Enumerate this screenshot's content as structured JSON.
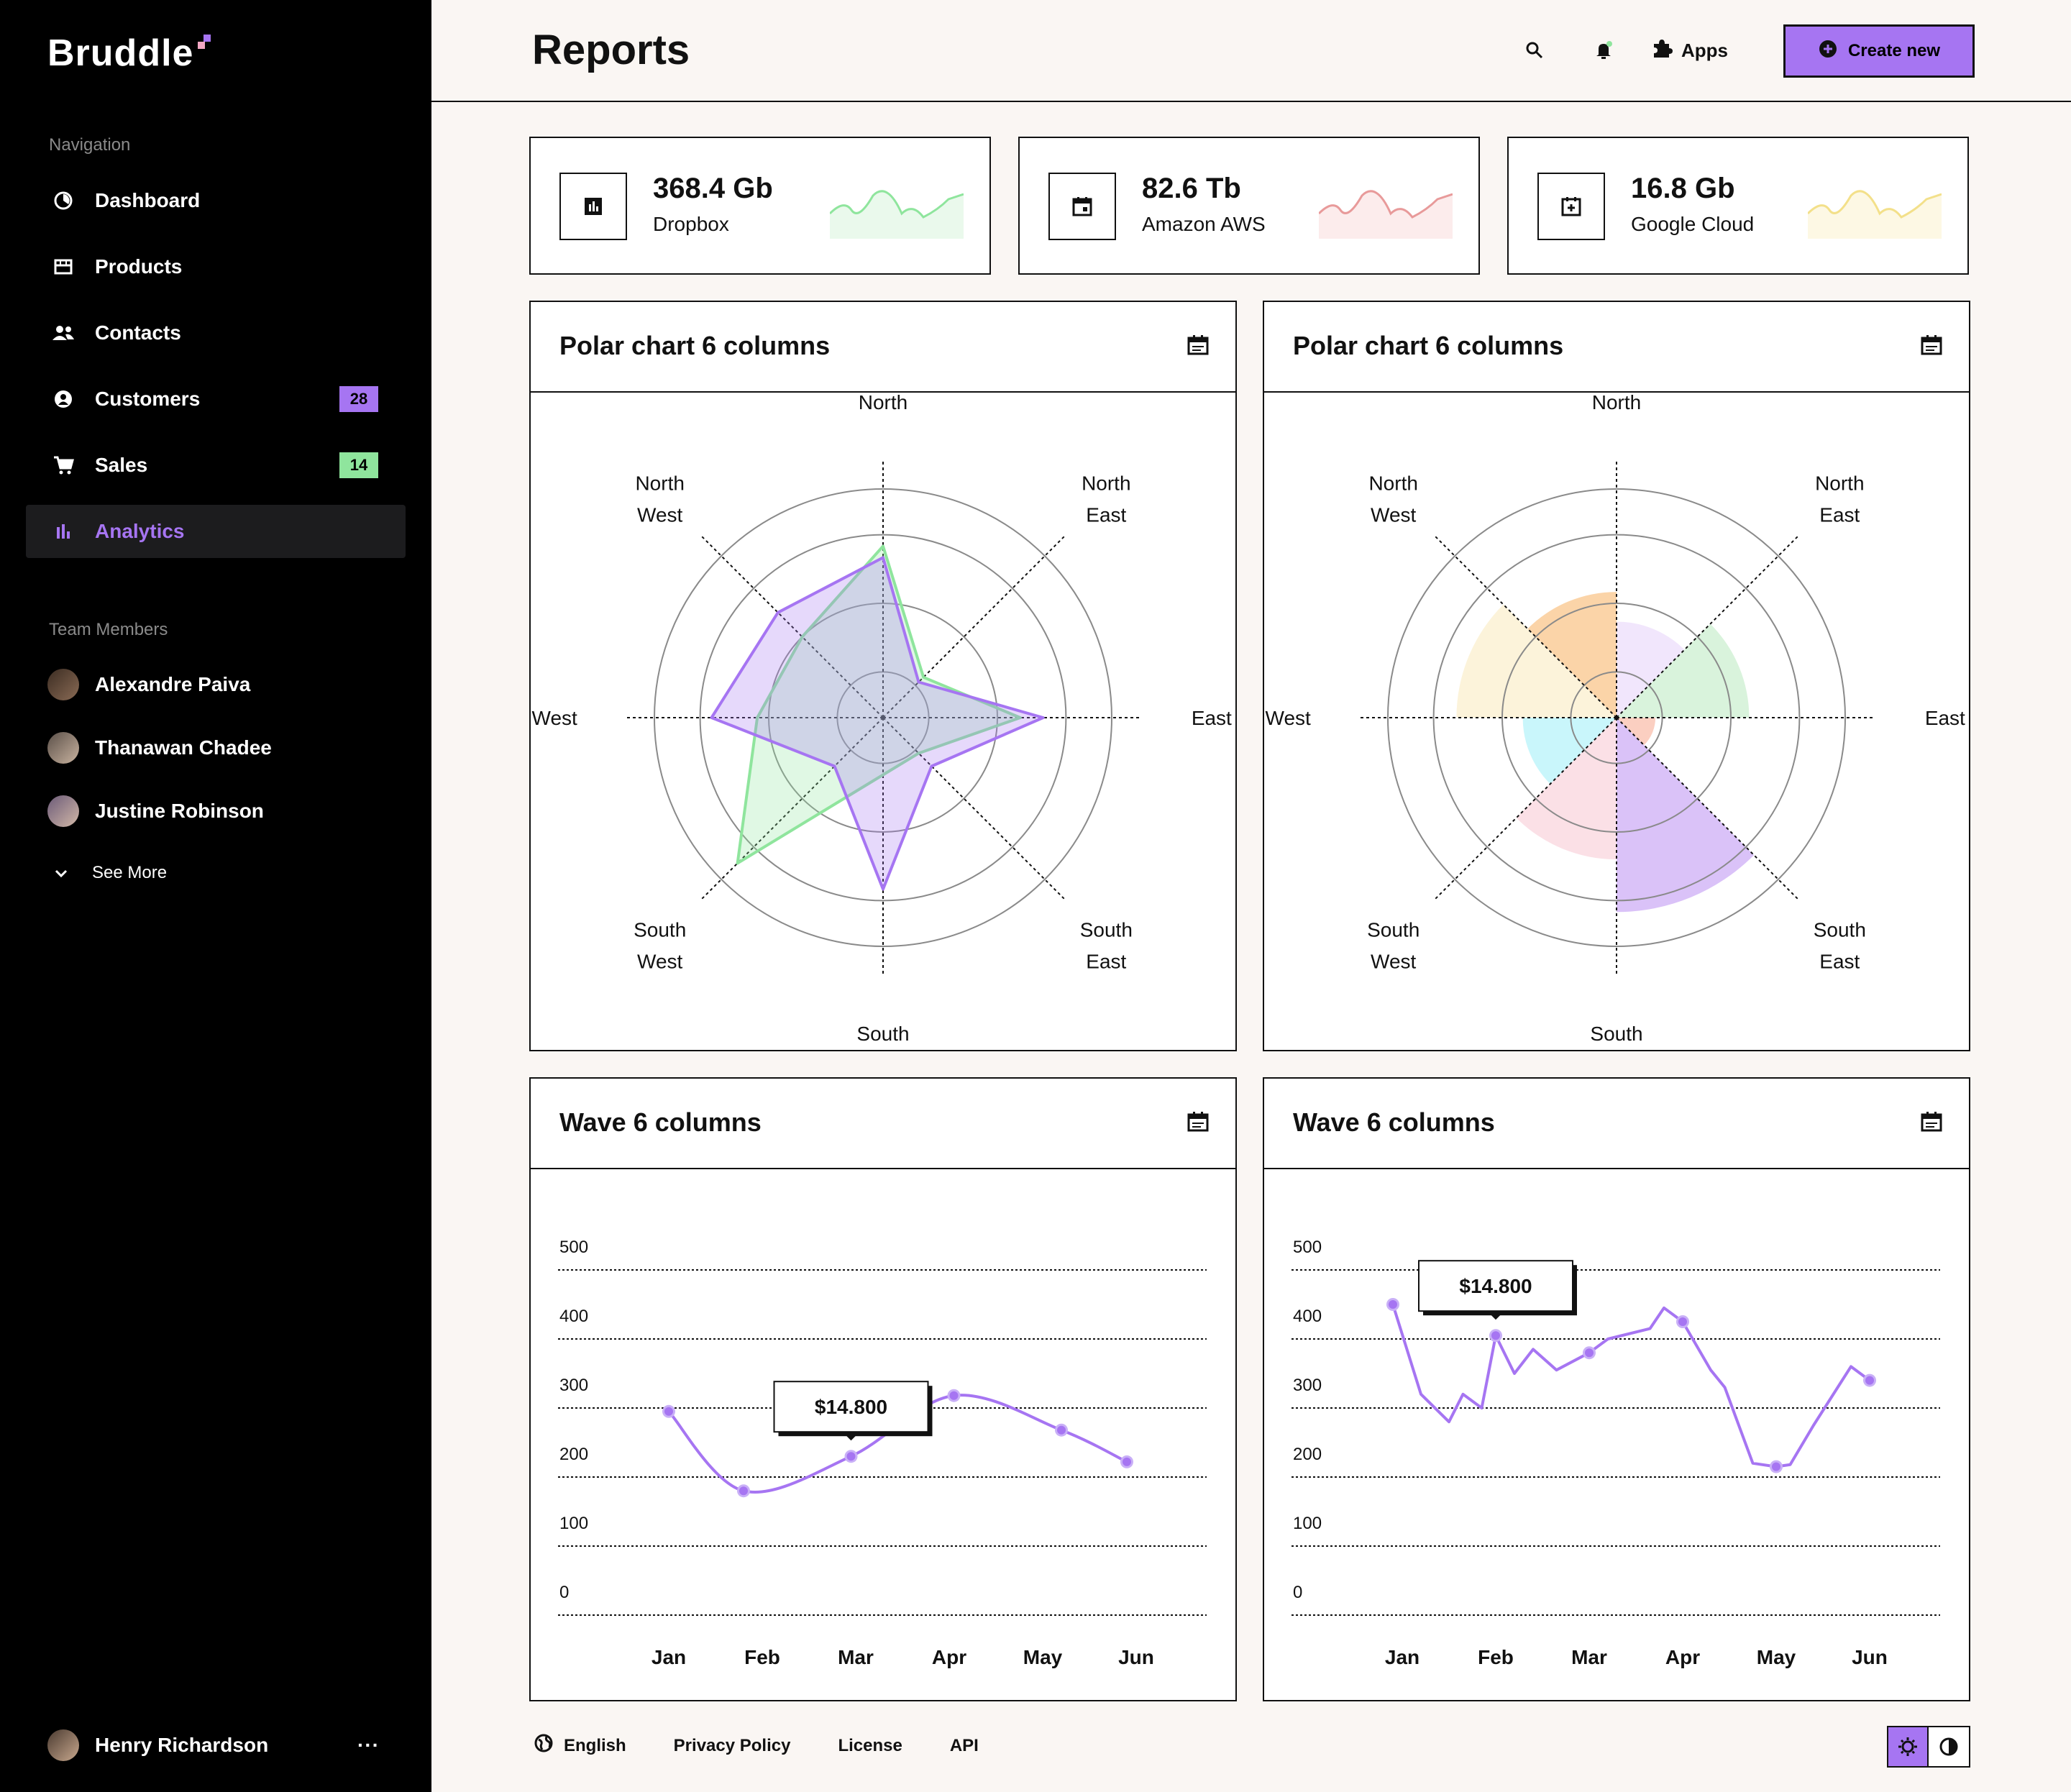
{
  "app": {
    "name": "Bruddle"
  },
  "sidebar": {
    "nav_label": "Navigation",
    "items": [
      {
        "label": "Dashboard",
        "icon": "dashboard-icon"
      },
      {
        "label": "Products",
        "icon": "products-icon"
      },
      {
        "label": "Contacts",
        "icon": "contacts-icon"
      },
      {
        "label": "Customers",
        "icon": "customers-icon",
        "badge": "28",
        "badge_color": "#a675f2"
      },
      {
        "label": "Sales",
        "icon": "cart-icon",
        "badge": "14",
        "badge_color": "#8fe59d"
      },
      {
        "label": "Analytics",
        "icon": "analytics-icon",
        "active": true
      }
    ],
    "team_label": "Team Members",
    "members": [
      {
        "name": "Alexandre Paiva"
      },
      {
        "name": "Thanawan Chadee"
      },
      {
        "name": "Justine Robinson"
      }
    ],
    "see_more": "See More",
    "user": {
      "name": "Henry Richardson",
      "more": "···"
    }
  },
  "header": {
    "title": "Reports",
    "apps_label": "Apps",
    "create_label": "Create new",
    "accent": "#a675f2"
  },
  "stats": [
    {
      "value": "368.4 Gb",
      "label": "Dropbox",
      "color": "#8fe59d",
      "fill": "#eaf9ec"
    },
    {
      "value": "82.6 Tb",
      "label": "Amazon AWS",
      "color": "#e89a9a",
      "fill": "#fcecec"
    },
    {
      "value": "16.8 Gb",
      "label": "Google Cloud",
      "color": "#f3e08a",
      "fill": "#fdf8e4"
    }
  ],
  "panels": {
    "radar_title": "Polar chart 6 columns",
    "polar_title": "Polar chart 6 columns",
    "wave1_title": "Wave 6 columns",
    "wave2_title": "Wave 6 columns",
    "wave1_tooltip": "$14.800",
    "wave2_tooltip": "$14.800"
  },
  "chart_data": [
    {
      "type": "radar",
      "title": "Polar chart 6 columns",
      "categories": [
        "North",
        "North East",
        "East",
        "South East",
        "South",
        "South West",
        "West",
        "North West"
      ],
      "rmax": 100,
      "series": [
        {
          "color": "#a675f2",
          "values": [
            70,
            22,
            70,
            30,
            75,
            30,
            75,
            65
          ]
        },
        {
          "color": "#8fe59d",
          "values": [
            75,
            25,
            60,
            22,
            25,
            90,
            55,
            50
          ]
        }
      ]
    },
    {
      "type": "polar",
      "title": "Polar chart 6 columns",
      "categories": [
        "North",
        "North East",
        "East",
        "South East",
        "South",
        "South West",
        "West",
        "North West"
      ],
      "rmax": 100,
      "values": [
        42,
        58,
        17,
        85,
        62,
        41,
        70,
        55
      ],
      "colors": [
        "#f1e6fc",
        "#d9f3dc",
        "#fbcfc1",
        "#dac2f8",
        "#fbe0e6",
        "#c9f6fb",
        "#fcf3da",
        "#fbd4a8"
      ]
    },
    {
      "type": "line",
      "title": "Wave 6 columns",
      "categories": [
        "Jan",
        "Feb",
        "Mar",
        "Apr",
        "May",
        "Jun"
      ],
      "yticks": [
        500,
        400,
        300,
        200,
        100,
        0
      ],
      "ylim": [
        0,
        500
      ],
      "points": [
        [
          0.0,
          295
        ],
        [
          0.8,
          180
        ],
        [
          1.95,
          230
        ],
        [
          3.05,
          318
        ],
        [
          4.2,
          268
        ],
        [
          4.9,
          222
        ]
      ],
      "tooltip": "$14.800",
      "tooltip_at": 2,
      "color": "#a675f2"
    },
    {
      "type": "line",
      "title": "Wave 6 columns",
      "categories": [
        "Jan",
        "Feb",
        "Mar",
        "Apr",
        "May",
        "Jun"
      ],
      "yticks": [
        500,
        400,
        300,
        200,
        100,
        0
      ],
      "ylim": [
        0,
        500
      ],
      "points": [
        [
          -0.1,
          450
        ],
        [
          0.2,
          320
        ],
        [
          0.5,
          280
        ],
        [
          0.65,
          320
        ],
        [
          0.85,
          300
        ],
        [
          1.0,
          405
        ],
        [
          1.2,
          350
        ],
        [
          1.4,
          385
        ],
        [
          1.65,
          355
        ],
        [
          2.0,
          380
        ],
        [
          2.2,
          400
        ],
        [
          2.65,
          415
        ],
        [
          2.8,
          445
        ],
        [
          3.0,
          425
        ],
        [
          3.3,
          355
        ],
        [
          3.45,
          330
        ],
        [
          3.75,
          220
        ],
        [
          4.0,
          215
        ],
        [
          4.15,
          218
        ],
        [
          4.4,
          275
        ],
        [
          4.8,
          360
        ],
        [
          5.0,
          340
        ]
      ],
      "markers": [
        0,
        5,
        9,
        13,
        17,
        21
      ],
      "tooltip": "$14.800",
      "tooltip_at": 5,
      "color": "#a675f2"
    }
  ],
  "footer": {
    "language": "English",
    "privacy": "Privacy Policy",
    "license": "License",
    "api": "API"
  }
}
